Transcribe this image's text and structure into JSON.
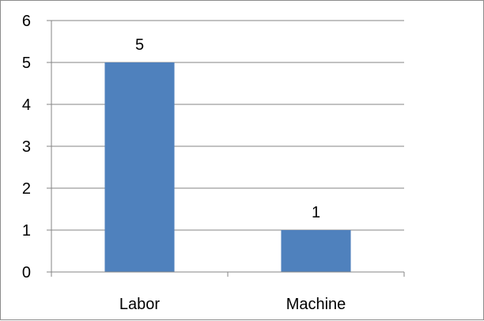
{
  "chart_data": {
    "type": "bar",
    "categories": [
      "Labor",
      "Machine"
    ],
    "values": [
      5,
      1
    ],
    "data_labels": [
      "5",
      "1"
    ],
    "title": "",
    "xlabel": "",
    "ylabel": "",
    "ylim": [
      0,
      6
    ],
    "yticks": [
      "0",
      "1",
      "2",
      "3",
      "4",
      "5",
      "6"
    ],
    "grid": true,
    "legend": "none",
    "bar_color": "#4f81bd",
    "grid_color": "#868686"
  }
}
